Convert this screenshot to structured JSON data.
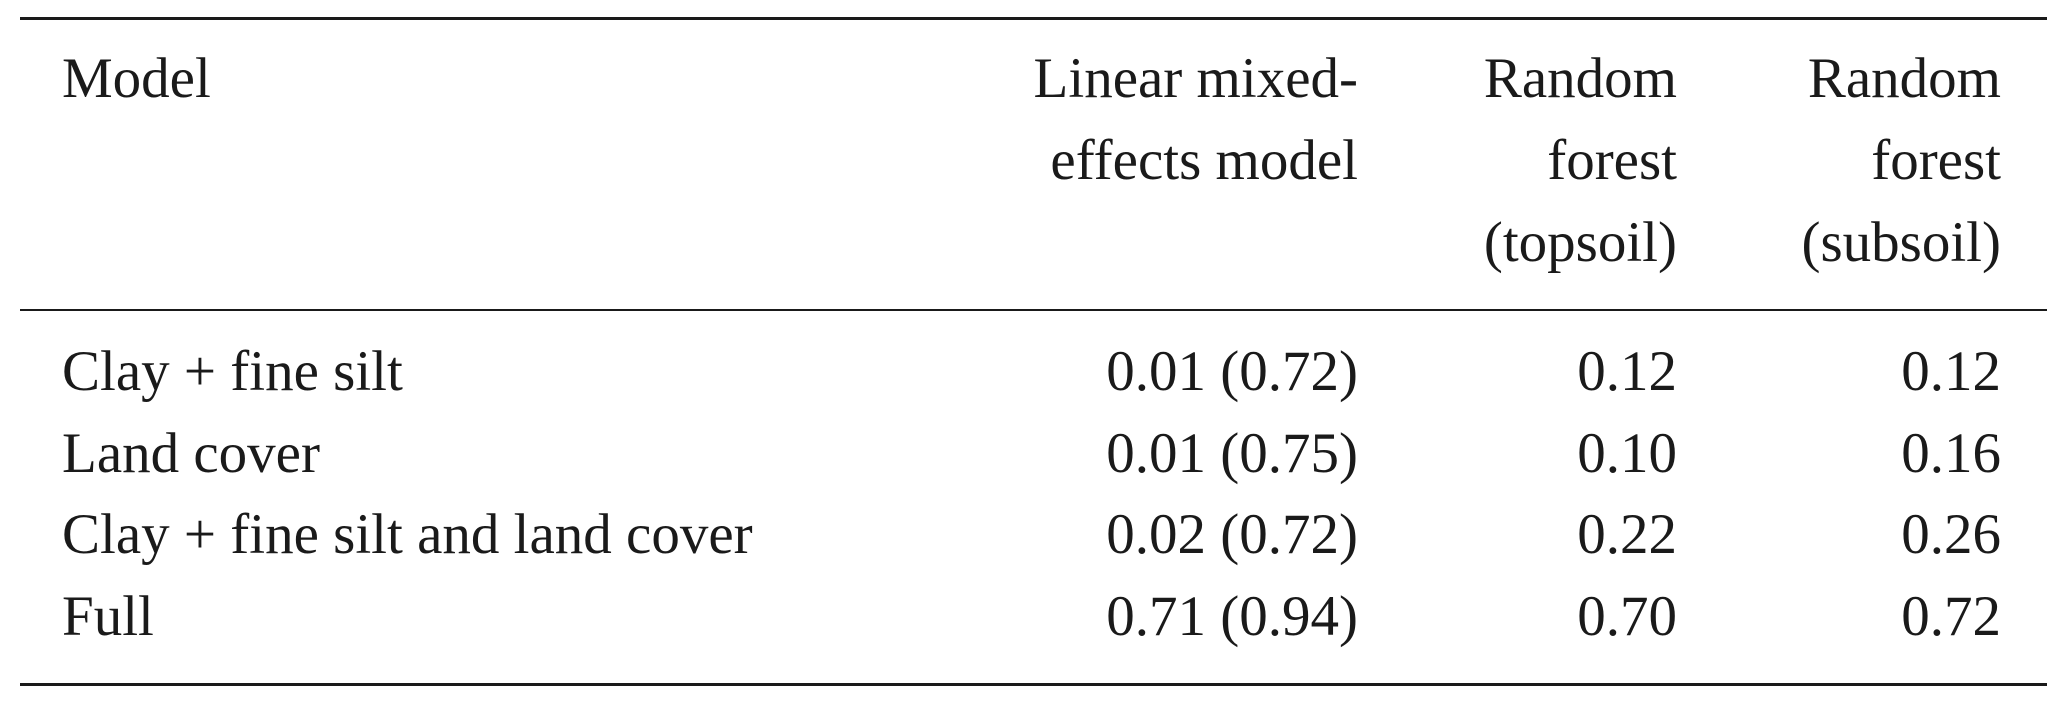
{
  "table": {
    "header": [
      [
        "Model"
      ],
      [
        "Linear mixed-",
        "effects model"
      ],
      [
        "Random",
        "forest",
        "(topsoil)"
      ],
      [
        "Random",
        "forest",
        "(subsoil)"
      ]
    ],
    "rows": [
      [
        "Clay + fine silt",
        "0.01 (0.72)",
        "0.12",
        "0.12"
      ],
      [
        "Land cover",
        "0.01 (0.75)",
        "0.10",
        "0.16"
      ],
      [
        "Clay + fine silt and land cover",
        "0.02 (0.72)",
        "0.22",
        "0.26"
      ],
      [
        "Full",
        "0.71 (0.94)",
        "0.70",
        "0.72"
      ]
    ]
  }
}
